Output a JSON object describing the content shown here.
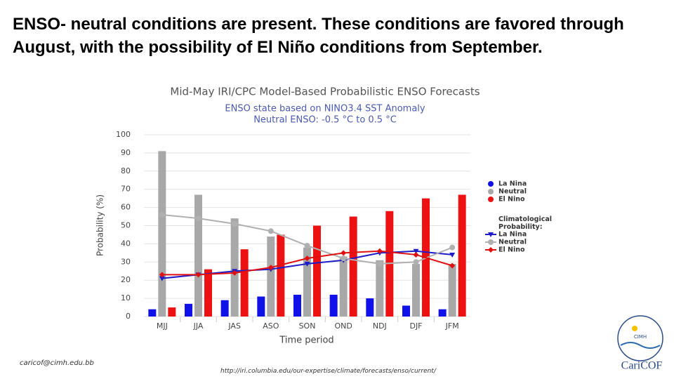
{
  "header": {
    "text": "ENSO- neutral conditions are present.  These conditions are favored through August, with the possibility of El Niño conditions from September."
  },
  "chart_data": {
    "type": "bar",
    "title": "Mid-May IRI/CPC Model-Based Probabilistic ENSO Forecasts",
    "subtitle": [
      "ENSO state based on NINO3.4 SST Anomaly",
      "Neutral ENSO: -0.5 °C to 0.5 °C"
    ],
    "ylabel": "Probability (%)",
    "xlabel": "Time period",
    "categories": [
      "MJJ",
      "JJA",
      "JAS",
      "ASO",
      "SON",
      "OND",
      "NDJ",
      "DJF",
      "JFM"
    ],
    "series": [
      {
        "name": "La Nina",
        "color": "#1010e8",
        "values": [
          4,
          7,
          9,
          11,
          12,
          12,
          10,
          6,
          4
        ]
      },
      {
        "name": "Neutral",
        "color": "#a8a8a8",
        "values": [
          91,
          67,
          54,
          44,
          38,
          33,
          31,
          29,
          29
        ]
      },
      {
        "name": "El Nino",
        "color": "#ee1111",
        "values": [
          5,
          26,
          37,
          45,
          50,
          55,
          58,
          65,
          67
        ]
      }
    ],
    "climatology": {
      "title": "Climatological Probability:",
      "series": [
        {
          "name": "La Nina",
          "color": "#1c1cc8",
          "marker": "triangle-down",
          "values": [
            21,
            23,
            25,
            26,
            29,
            31,
            35,
            36,
            34
          ]
        },
        {
          "name": "Neutral",
          "color": "#b0b0b0",
          "marker": "circle",
          "values": [
            56,
            54,
            51,
            47,
            39,
            32,
            29,
            30,
            38
          ]
        },
        {
          "name": "El Nino",
          "color": "#e01010",
          "marker": "diamond",
          "values": [
            23,
            23,
            24,
            27,
            32,
            35,
            36,
            34,
            28
          ]
        }
      ]
    },
    "ylim": [
      0,
      100
    ],
    "yticks": [
      0,
      10,
      20,
      30,
      40,
      50,
      60,
      70,
      80,
      90,
      100
    ],
    "grid": true
  },
  "footer": {
    "email": "caricof@cimh.edu.bb",
    "url": "http://iri.columbia.edu/our-expertise/climate/forecasts/enso/current/"
  },
  "logo": {
    "badge": "CIMH",
    "name": "CariCOF"
  }
}
